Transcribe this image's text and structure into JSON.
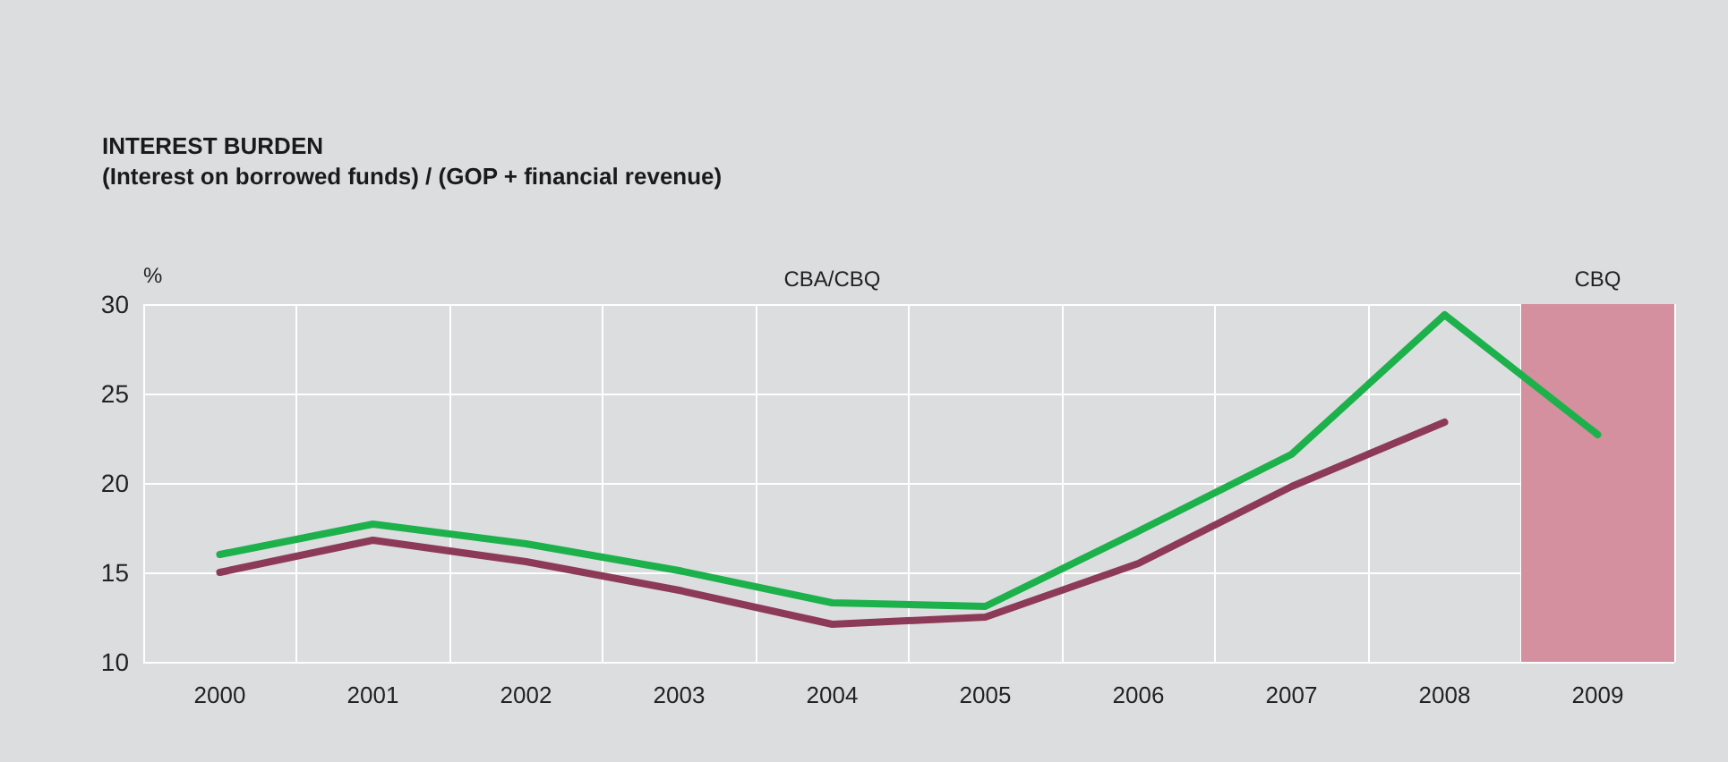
{
  "chart_data": {
    "type": "line",
    "title": "INTEREST BURDEN",
    "subtitle": "(Interest on borrowed funds) / (GOP + financial revenue)",
    "ylabel": "%",
    "categories": [
      "2000",
      "2001",
      "2002",
      "2003",
      "2004",
      "2005",
      "2006",
      "2007",
      "2008",
      "2009"
    ],
    "series": [
      {
        "color": "#1db14b",
        "values": [
          16.0,
          17.7,
          16.6,
          15.1,
          13.3,
          13.1,
          17.3,
          21.6,
          29.4,
          22.7
        ]
      },
      {
        "color": "#8c3a57",
        "values": [
          15.0,
          16.8,
          15.6,
          14.0,
          12.1,
          12.5,
          15.5,
          19.8,
          23.4,
          null
        ]
      }
    ],
    "ylim": [
      10,
      30
    ],
    "yticks": [
      10,
      15,
      20,
      25,
      30
    ],
    "grid": true,
    "line_style": "solid",
    "annotations": [
      "CBA/CBQ"
    ],
    "bands": [
      {
        "axis": "x",
        "from": "2009",
        "to": "2009",
        "label": "CBQ",
        "color": "#d4909f"
      }
    ]
  }
}
